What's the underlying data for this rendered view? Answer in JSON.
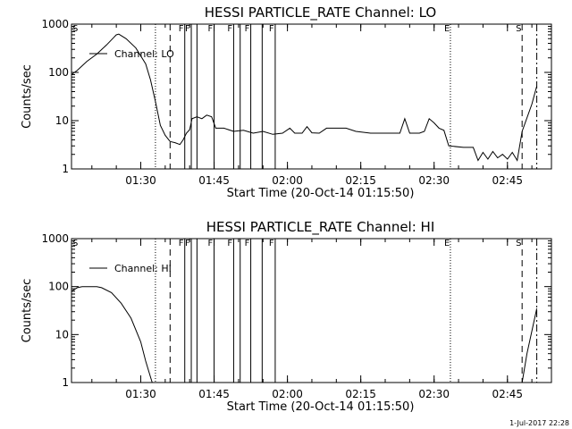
{
  "chart_data": [
    {
      "type": "line",
      "title": "HESSI PARTICLE_RATE Channel: LO",
      "xlabel": "Start Time (20-Oct-14 01:15:50)",
      "ylabel": "Counts/sec",
      "yscale": "log",
      "xlim": [
        "01:15:50",
        "02:54:00"
      ],
      "ylim": [
        1,
        1000
      ],
      "x_ticks": [
        "01:30",
        "01:45",
        "02:00",
        "02:15",
        "02:30",
        "02:45"
      ],
      "y_ticks": [
        "1",
        "10",
        "100",
        "1000"
      ],
      "legend": {
        "entries": [
          "Channel: LO"
        ],
        "position": "top-left"
      },
      "series": [
        {
          "name": "Channel: LO",
          "points": [
            [
              "01:15:50",
              90
            ],
            [
              "01:17:00",
              110
            ],
            [
              "01:19:00",
              170
            ],
            [
              "01:21:00",
              240
            ],
            [
              "01:23:00",
              370
            ],
            [
              "01:25:00",
              600
            ],
            [
              "01:25:30",
              620
            ],
            [
              "01:27:00",
              500
            ],
            [
              "01:29:00",
              320
            ],
            [
              "01:31:00",
              150
            ],
            [
              "01:32:00",
              70
            ],
            [
              "01:33:00",
              25
            ],
            [
              "01:34:00",
              8
            ],
            [
              "01:35:00",
              5
            ],
            [
              "01:36:00",
              3.7
            ],
            [
              "01:37:00",
              3.5
            ],
            [
              "01:38:00",
              3.2
            ],
            [
              "01:38:40",
              4
            ],
            [
              "01:39:20",
              5.5
            ],
            [
              "01:40:00",
              6.5
            ],
            [
              "01:40:30",
              11
            ],
            [
              "01:41:30",
              12
            ],
            [
              "01:42:30",
              11
            ],
            [
              "01:43:30",
              13
            ],
            [
              "01:44:30",
              12
            ],
            [
              "01:45:20",
              7
            ],
            [
              "01:47:00",
              7
            ],
            [
              "01:49:00",
              6
            ],
            [
              "01:51:00",
              6.3
            ],
            [
              "01:53:00",
              5.5
            ],
            [
              "01:55:00",
              6
            ],
            [
              "01:57:00",
              5.2
            ],
            [
              "01:59:00",
              5.5
            ],
            [
              "02:00:30",
              7
            ],
            [
              "02:01:30",
              5.5
            ],
            [
              "02:03:00",
              5.5
            ],
            [
              "02:04:00",
              7.5
            ],
            [
              "02:05:00",
              5.6
            ],
            [
              "02:06:30",
              5.5
            ],
            [
              "02:08:00",
              7
            ],
            [
              "02:09:30",
              7
            ],
            [
              "02:12:00",
              7
            ],
            [
              "02:14:00",
              6
            ],
            [
              "02:17:00",
              5.5
            ],
            [
              "02:20:00",
              5.5
            ],
            [
              "02:23:00",
              5.5
            ],
            [
              "02:24:00",
              11
            ],
            [
              "02:25:00",
              5.5
            ],
            [
              "02:27:00",
              5.5
            ],
            [
              "02:28:00",
              6
            ],
            [
              "02:29:00",
              11
            ],
            [
              "02:30:00",
              9
            ],
            [
              "02:31:00",
              7
            ],
            [
              "02:32:00",
              6.3
            ],
            [
              "02:33:00",
              3
            ],
            [
              "02:36:00",
              2.8
            ],
            [
              "02:38:00",
              2.8
            ],
            [
              "02:39:00",
              1.5
            ],
            [
              "02:40:00",
              2.2
            ],
            [
              "02:41:00",
              1.6
            ],
            [
              "02:42:00",
              2.3
            ],
            [
              "02:43:00",
              1.7
            ],
            [
              "02:44:00",
              2
            ],
            [
              "02:45:00",
              1.6
            ],
            [
              "02:46:00",
              2.2
            ],
            [
              "02:47:00",
              1.5
            ],
            [
              "02:48:00",
              6
            ],
            [
              "02:50:00",
              22
            ],
            [
              "02:51:00",
              52
            ]
          ]
        }
      ],
      "vertical_markers": [
        {
          "time": "01:33:00",
          "style": "dotted",
          "label": ""
        },
        {
          "time": "01:36:00",
          "style": "dashed",
          "label": ""
        },
        {
          "time": "01:39:00",
          "style": "solid",
          "label": "F"
        },
        {
          "time": "01:40:20",
          "style": "solid",
          "label": "F"
        },
        {
          "time": "01:41:30",
          "style": "solid",
          "label": ""
        },
        {
          "time": "01:45:00",
          "style": "solid",
          "label": "F"
        },
        {
          "time": "01:49:00",
          "style": "solid",
          "label": "F"
        },
        {
          "time": "01:50:20",
          "style": "solid",
          "label": ""
        },
        {
          "time": "01:52:30",
          "style": "solid",
          "label": "F"
        },
        {
          "time": "01:54:50",
          "style": "solid",
          "label": ""
        },
        {
          "time": "01:57:30",
          "style": "solid",
          "label": "F"
        },
        {
          "time": "02:33:20",
          "style": "dotted",
          "label": "E"
        },
        {
          "time": "02:48:00",
          "style": "dashed",
          "label": "S"
        },
        {
          "time": "02:51:00",
          "style": "dash-dot",
          "label": ""
        }
      ],
      "edge_labels": [
        {
          "label": "S",
          "position": "left"
        }
      ]
    },
    {
      "type": "line",
      "title": "HESSI PARTICLE_RATE Channel: HI",
      "xlabel": "Start Time (20-Oct-14 01:15:50)",
      "ylabel": "Counts/sec",
      "yscale": "log",
      "xlim": [
        "01:15:50",
        "02:54:00"
      ],
      "ylim": [
        1,
        1000
      ],
      "x_ticks": [
        "01:30",
        "01:45",
        "02:00",
        "02:15",
        "02:30",
        "02:45"
      ],
      "y_ticks": [
        "1",
        "10",
        "100",
        "1000"
      ],
      "legend": {
        "entries": [
          "Channel: HI"
        ],
        "position": "top-left"
      },
      "series": [
        {
          "name": "Channel: HI",
          "points": [
            [
              "01:15:50",
              80
            ],
            [
              "01:17:00",
              95
            ],
            [
              "01:18:00",
              100
            ],
            [
              "01:21:00",
              100
            ],
            [
              "01:22:00",
              95
            ],
            [
              "01:24:00",
              75
            ],
            [
              "01:26:00",
              45
            ],
            [
              "01:28:00",
              22
            ],
            [
              "01:30:00",
              7
            ],
            [
              "01:31:00",
              2.8
            ],
            [
              "01:32:00",
              1.3
            ],
            [
              "01:32:20",
              1
            ],
            [
              "02:48:00",
              1
            ],
            [
              "02:49:00",
              4
            ],
            [
              "02:51:00",
              35
            ]
          ]
        }
      ],
      "vertical_markers": [
        {
          "time": "01:33:00",
          "style": "dotted",
          "label": ""
        },
        {
          "time": "01:36:00",
          "style": "dashed",
          "label": ""
        },
        {
          "time": "01:39:00",
          "style": "solid",
          "label": "F"
        },
        {
          "time": "01:40:20",
          "style": "solid",
          "label": "F"
        },
        {
          "time": "01:41:30",
          "style": "solid",
          "label": ""
        },
        {
          "time": "01:45:00",
          "style": "solid",
          "label": "F"
        },
        {
          "time": "01:49:00",
          "style": "solid",
          "label": "F"
        },
        {
          "time": "01:50:20",
          "style": "solid",
          "label": ""
        },
        {
          "time": "01:52:30",
          "style": "solid",
          "label": "F"
        },
        {
          "time": "01:54:50",
          "style": "solid",
          "label": ""
        },
        {
          "time": "01:57:30",
          "style": "solid",
          "label": "F"
        },
        {
          "time": "02:33:20",
          "style": "dotted",
          "label": "E"
        },
        {
          "time": "02:48:00",
          "style": "dashed",
          "label": "S"
        },
        {
          "time": "02:51:00",
          "style": "dash-dot",
          "label": ""
        }
      ],
      "edge_labels": [
        {
          "label": "S",
          "position": "left"
        }
      ]
    }
  ],
  "footer": {
    "timestamp": "1-Jul-2017 22:28"
  }
}
